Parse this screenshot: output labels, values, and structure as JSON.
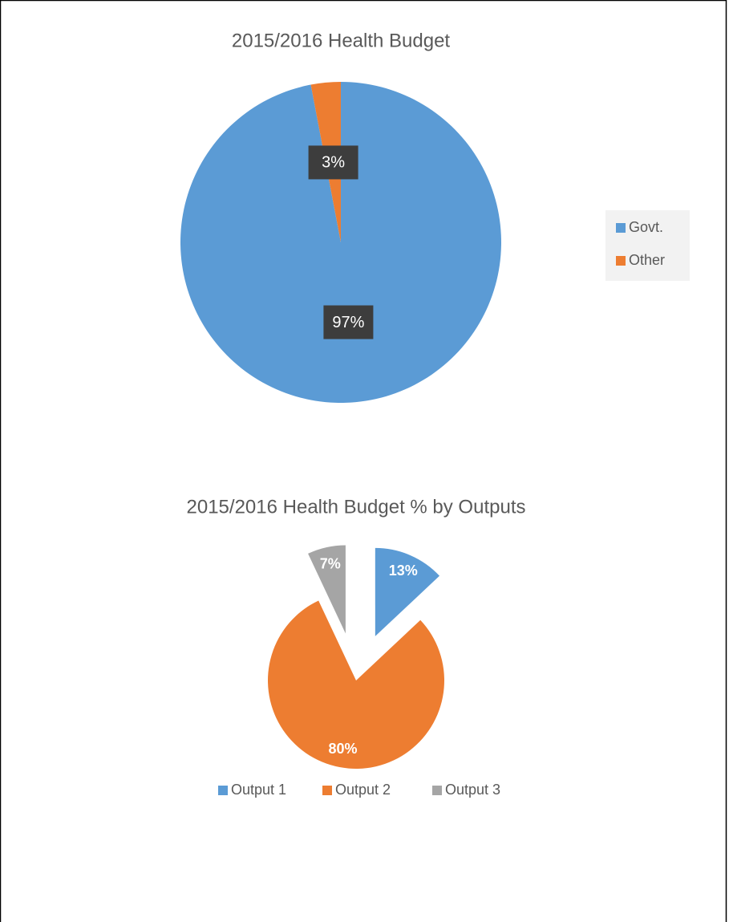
{
  "chart_data": [
    {
      "type": "pie",
      "title": "2015/2016 Health Budget",
      "categories": [
        "Govt.",
        "Other"
      ],
      "values": [
        97,
        3
      ],
      "value_labels": [
        "97%",
        "3%"
      ],
      "colors": [
        "#5b9bd5",
        "#ed7d31"
      ],
      "legend": "right"
    },
    {
      "type": "pie",
      "title": "2015/2016 Health Budget % by Outputs",
      "categories": [
        "Output 1",
        "Output 2",
        "Output 3"
      ],
      "values": [
        13,
        80,
        7
      ],
      "value_labels": [
        "13%",
        "80%",
        "7%"
      ],
      "colors": [
        "#5b9bd5",
        "#ed7d31",
        "#a5a5a5"
      ],
      "explode": [
        true,
        false,
        true
      ],
      "legend": "bottom"
    }
  ]
}
